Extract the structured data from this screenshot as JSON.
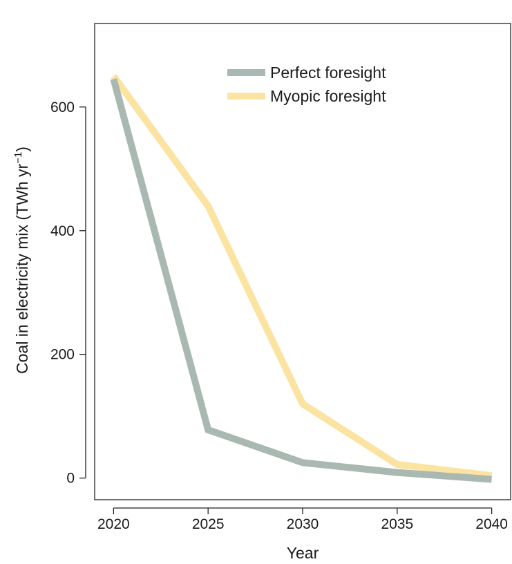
{
  "chart_data": {
    "type": "line",
    "title": "",
    "xlabel": "Year",
    "ylabel": "Coal in electricity mix (TWh yr",
    "ylabel_superscript": "−1",
    "ylabel_close": ")",
    "x": [
      2020,
      2025,
      2030,
      2035,
      2040
    ],
    "xticks": [
      "2020",
      "2025",
      "2030",
      "2035",
      "2040"
    ],
    "yticks": [
      "0",
      "200",
      "400",
      "600"
    ],
    "xlim": [
      2019.0,
      2041.0
    ],
    "ylim": [
      -35,
      735
    ],
    "grid": false,
    "legend_position": "top-center",
    "series": [
      {
        "name": "Perfect foresight",
        "color": "#a9b9b1",
        "values": [
          645,
          78,
          25,
          9,
          -2
        ]
      },
      {
        "name": "Myopic foresight",
        "color": "#fbe3a1",
        "values": [
          650,
          440,
          120,
          22,
          4
        ]
      }
    ]
  }
}
